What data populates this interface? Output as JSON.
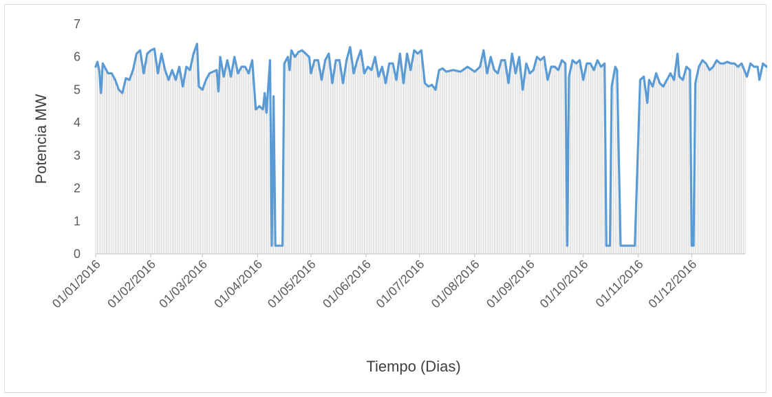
{
  "chart_data": {
    "type": "area",
    "title": "",
    "xlabel": "Tiempo (Dias)",
    "ylabel": "Potencia MW",
    "ylim": [
      0,
      7
    ],
    "yticks": [
      0,
      1,
      2,
      3,
      4,
      5,
      6,
      7
    ],
    "xlim": [
      "2016-01-01",
      "2016-12-31"
    ],
    "xticks": [
      "01/01/2016",
      "01/02/2016",
      "01/03/2016",
      "01/04/2016",
      "01/05/2016",
      "01/06/2016",
      "01/07/2016",
      "01/08/2016",
      "01/09/2016",
      "01/10/2016",
      "01/11/2016",
      "01/12/2016"
    ],
    "grid": false,
    "legend": "none",
    "line_color": "#5b9bd5",
    "fill_color": "#d0d0d0",
    "series": [
      {
        "points": [
          [
            "2016-01-01",
            5.7
          ],
          [
            "2016-01-02",
            5.85
          ],
          [
            "2016-01-03",
            5.6
          ],
          [
            "2016-01-04",
            4.9
          ],
          [
            "2016-01-05",
            5.8
          ],
          [
            "2016-01-06",
            5.7
          ],
          [
            "2016-01-08",
            5.5
          ],
          [
            "2016-01-10",
            5.5
          ],
          [
            "2016-01-12",
            5.3
          ],
          [
            "2016-01-14",
            5.0
          ],
          [
            "2016-01-16",
            4.9
          ],
          [
            "2016-01-18",
            5.35
          ],
          [
            "2016-01-20",
            5.3
          ],
          [
            "2016-01-22",
            5.6
          ],
          [
            "2016-01-24",
            6.1
          ],
          [
            "2016-01-26",
            6.2
          ],
          [
            "2016-01-28",
            5.5
          ],
          [
            "2016-01-30",
            6.1
          ],
          [
            "2016-02-01",
            6.2
          ],
          [
            "2016-02-03",
            6.25
          ],
          [
            "2016-02-05",
            5.5
          ],
          [
            "2016-02-07",
            6.1
          ],
          [
            "2016-02-09",
            5.6
          ],
          [
            "2016-02-11",
            5.3
          ],
          [
            "2016-02-13",
            5.6
          ],
          [
            "2016-02-15",
            5.3
          ],
          [
            "2016-02-17",
            5.7
          ],
          [
            "2016-02-19",
            5.1
          ],
          [
            "2016-02-21",
            5.7
          ],
          [
            "2016-02-23",
            5.6
          ],
          [
            "2016-02-25",
            6.1
          ],
          [
            "2016-02-27",
            6.4
          ],
          [
            "2016-02-28",
            5.1
          ],
          [
            "2016-03-01",
            5.0
          ],
          [
            "2016-03-03",
            5.3
          ],
          [
            "2016-03-05",
            5.5
          ],
          [
            "2016-03-07",
            5.55
          ],
          [
            "2016-03-09",
            5.6
          ],
          [
            "2016-03-10",
            4.95
          ],
          [
            "2016-03-11",
            6.0
          ],
          [
            "2016-03-13",
            5.4
          ],
          [
            "2016-03-15",
            5.9
          ],
          [
            "2016-03-17",
            5.4
          ],
          [
            "2016-03-19",
            6.0
          ],
          [
            "2016-03-21",
            5.5
          ],
          [
            "2016-03-23",
            5.7
          ],
          [
            "2016-03-25",
            5.7
          ],
          [
            "2016-03-27",
            5.5
          ],
          [
            "2016-03-29",
            5.9
          ],
          [
            "2016-03-31",
            4.4
          ],
          [
            "2016-04-02",
            4.5
          ],
          [
            "2016-04-04",
            4.4
          ],
          [
            "2016-04-05",
            4.9
          ],
          [
            "2016-04-06",
            4.3
          ],
          [
            "2016-04-08",
            5.9
          ],
          [
            "2016-04-09",
            0.25
          ],
          [
            "2016-04-10",
            4.8
          ],
          [
            "2016-04-11",
            0.25
          ],
          [
            "2016-04-15",
            0.25
          ],
          [
            "2016-04-16",
            5.8
          ],
          [
            "2016-04-18",
            6.0
          ],
          [
            "2016-04-19",
            5.6
          ],
          [
            "2016-04-20",
            6.2
          ],
          [
            "2016-04-22",
            6.0
          ],
          [
            "2016-04-24",
            6.15
          ],
          [
            "2016-04-26",
            6.2
          ],
          [
            "2016-04-28",
            6.1
          ],
          [
            "2016-04-30",
            6.0
          ],
          [
            "2016-05-01",
            5.5
          ],
          [
            "2016-05-03",
            5.9
          ],
          [
            "2016-05-05",
            5.9
          ],
          [
            "2016-05-07",
            5.3
          ],
          [
            "2016-05-09",
            5.9
          ],
          [
            "2016-05-11",
            6.1
          ],
          [
            "2016-05-13",
            5.2
          ],
          [
            "2016-05-15",
            5.9
          ],
          [
            "2016-05-17",
            5.9
          ],
          [
            "2016-05-19",
            5.2
          ],
          [
            "2016-05-21",
            5.9
          ],
          [
            "2016-05-23",
            6.3
          ],
          [
            "2016-05-25",
            5.5
          ],
          [
            "2016-05-27",
            5.9
          ],
          [
            "2016-05-29",
            6.2
          ],
          [
            "2016-05-31",
            5.5
          ],
          [
            "2016-06-02",
            5.7
          ],
          [
            "2016-06-04",
            5.6
          ],
          [
            "2016-06-06",
            6.0
          ],
          [
            "2016-06-08",
            5.4
          ],
          [
            "2016-06-10",
            5.7
          ],
          [
            "2016-06-12",
            5.2
          ],
          [
            "2016-06-14",
            5.8
          ],
          [
            "2016-06-16",
            5.8
          ],
          [
            "2016-06-18",
            5.3
          ],
          [
            "2016-06-20",
            6.1
          ],
          [
            "2016-06-22",
            5.2
          ],
          [
            "2016-06-24",
            6.1
          ],
          [
            "2016-06-26",
            5.6
          ],
          [
            "2016-06-28",
            6.2
          ],
          [
            "2016-06-30",
            6.1
          ],
          [
            "2016-07-02",
            6.2
          ],
          [
            "2016-07-04",
            5.2
          ],
          [
            "2016-07-06",
            5.1
          ],
          [
            "2016-07-08",
            5.15
          ],
          [
            "2016-07-10",
            5.0
          ],
          [
            "2016-07-12",
            5.6
          ],
          [
            "2016-07-14",
            5.65
          ],
          [
            "2016-07-16",
            5.55
          ],
          [
            "2016-07-20",
            5.6
          ],
          [
            "2016-07-24",
            5.55
          ],
          [
            "2016-07-28",
            5.7
          ],
          [
            "2016-08-01",
            5.55
          ],
          [
            "2016-08-04",
            5.7
          ],
          [
            "2016-08-06",
            6.2
          ],
          [
            "2016-08-08",
            5.5
          ],
          [
            "2016-08-10",
            6.0
          ],
          [
            "2016-08-12",
            5.6
          ],
          [
            "2016-08-14",
            5.5
          ],
          [
            "2016-08-16",
            5.9
          ],
          [
            "2016-08-18",
            5.9
          ],
          [
            "2016-08-20",
            5.2
          ],
          [
            "2016-08-22",
            6.1
          ],
          [
            "2016-08-24",
            5.5
          ],
          [
            "2016-08-26",
            6.0
          ],
          [
            "2016-08-28",
            5.0
          ],
          [
            "2016-08-30",
            5.8
          ],
          [
            "2016-09-01",
            5.5
          ],
          [
            "2016-09-03",
            5.6
          ],
          [
            "2016-09-05",
            6.0
          ],
          [
            "2016-09-07",
            5.9
          ],
          [
            "2016-09-09",
            6.0
          ],
          [
            "2016-09-11",
            5.3
          ],
          [
            "2016-09-13",
            5.7
          ],
          [
            "2016-09-15",
            5.7
          ],
          [
            "2016-09-17",
            5.6
          ],
          [
            "2016-09-19",
            5.9
          ],
          [
            "2016-09-21",
            5.8
          ],
          [
            "2016-09-22",
            0.25
          ],
          [
            "2016-09-23",
            5.4
          ],
          [
            "2016-09-25",
            5.9
          ],
          [
            "2016-09-27",
            5.8
          ],
          [
            "2016-09-29",
            5.9
          ],
          [
            "2016-10-01",
            5.3
          ],
          [
            "2016-10-03",
            5.8
          ],
          [
            "2016-10-05",
            5.8
          ],
          [
            "2016-10-07",
            5.6
          ],
          [
            "2016-10-09",
            5.9
          ],
          [
            "2016-10-11",
            5.7
          ],
          [
            "2016-10-13",
            5.8
          ],
          [
            "2016-10-14",
            0.25
          ],
          [
            "2016-10-16",
            0.25
          ],
          [
            "2016-10-17",
            5.1
          ],
          [
            "2016-10-19",
            5.7
          ],
          [
            "2016-10-20",
            5.6
          ],
          [
            "2016-10-22",
            0.25
          ],
          [
            "2016-10-26",
            0.25
          ],
          [
            "2016-10-30",
            0.25
          ],
          [
            "2016-11-02",
            5.3
          ],
          [
            "2016-11-04",
            5.4
          ],
          [
            "2016-11-06",
            4.6
          ],
          [
            "2016-11-07",
            5.3
          ],
          [
            "2016-11-09",
            5.1
          ],
          [
            "2016-11-11",
            5.5
          ],
          [
            "2016-11-13",
            5.2
          ],
          [
            "2016-11-15",
            5.1
          ],
          [
            "2016-11-17",
            5.3
          ],
          [
            "2016-11-19",
            5.5
          ],
          [
            "2016-11-21",
            5.3
          ],
          [
            "2016-11-23",
            6.1
          ],
          [
            "2016-11-24",
            5.4
          ],
          [
            "2016-11-26",
            5.3
          ],
          [
            "2016-11-28",
            5.7
          ],
          [
            "2016-11-30",
            5.6
          ],
          [
            "2016-12-01",
            0.25
          ],
          [
            "2016-12-02",
            0.25
          ],
          [
            "2016-12-03",
            5.2
          ],
          [
            "2016-12-05",
            5.7
          ],
          [
            "2016-12-07",
            5.9
          ],
          [
            "2016-12-09",
            5.8
          ],
          [
            "2016-12-11",
            5.6
          ],
          [
            "2016-12-13",
            5.7
          ],
          [
            "2016-12-15",
            5.9
          ],
          [
            "2016-12-17",
            5.8
          ],
          [
            "2016-12-19",
            5.8
          ],
          [
            "2016-12-21",
            5.85
          ],
          [
            "2016-12-23",
            5.8
          ],
          [
            "2016-12-25",
            5.8
          ],
          [
            "2016-12-27",
            5.7
          ],
          [
            "2016-12-29",
            5.8
          ],
          [
            "2017-01-01",
            5.4
          ],
          [
            "2017-01-03",
            5.8
          ],
          [
            "2017-01-05",
            5.7
          ],
          [
            "2017-01-07",
            5.7
          ],
          [
            "2017-01-08",
            5.3
          ],
          [
            "2017-01-10",
            5.8
          ],
          [
            "2017-01-12",
            5.7
          ],
          [
            "2017-01-14",
            5.8
          ],
          [
            "2017-01-16",
            5.6
          ],
          [
            "2017-01-18",
            5.6
          ]
        ]
      }
    ]
  }
}
